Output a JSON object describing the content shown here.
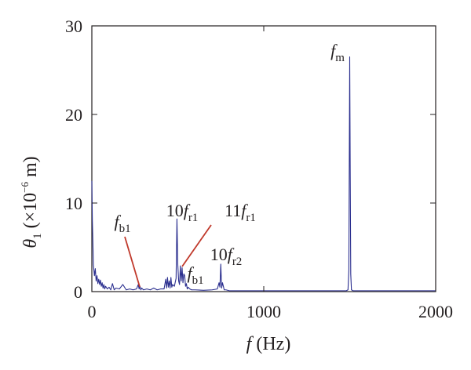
{
  "chart_data": {
    "type": "line",
    "x_unit": "Hz",
    "xlim": [
      0,
      2000
    ],
    "ylim": [
      0,
      30
    ],
    "x_ticks": [
      0,
      1000,
      2000
    ],
    "y_ticks": [
      0,
      10,
      20,
      30
    ],
    "x_tick_labels": [
      "0",
      "1000",
      "2000"
    ],
    "y_tick_labels": [
      "0",
      "10",
      "20",
      "30"
    ],
    "xlabel": {
      "var": "f",
      "rest": " (Hz)"
    },
    "ylabel": {
      "var": "θ",
      "sub": "1",
      "prefix": " (×10",
      "sup": "−6",
      "suffix": " m)"
    },
    "grid": false,
    "series_color": "#2b2f8f",
    "annotation_color": "#c0392b",
    "series": [
      {
        "x": [
          0,
          3,
          6,
          9,
          12,
          15,
          20,
          25,
          30,
          35,
          40,
          45,
          50,
          55,
          60,
          65,
          70,
          75,
          80,
          90,
          100,
          110,
          120,
          130,
          140,
          160,
          180,
          200,
          220,
          240,
          260,
          270,
          275,
          280,
          285,
          290,
          300,
          320,
          340,
          360,
          380,
          400,
          420,
          430,
          435,
          440,
          445,
          450,
          455,
          460,
          465,
          470,
          480,
          490,
          495,
          500,
          505,
          510,
          515,
          520,
          525,
          530,
          535,
          540,
          545,
          550,
          555,
          560,
          570,
          580,
          600,
          650,
          700,
          730,
          740,
          745,
          750,
          755,
          760,
          770,
          780,
          800,
          900,
          1000,
          1100,
          1200,
          1300,
          1400,
          1480,
          1490,
          1495,
          1500,
          1503,
          1506,
          1510,
          1520,
          1600,
          1800,
          2000
        ],
        "y": [
          12.5,
          8.0,
          5.6,
          3.0,
          2.4,
          1.8,
          2.6,
          1.2,
          1.8,
          0.9,
          1.4,
          0.8,
          1.3,
          0.6,
          1.0,
          0.4,
          0.8,
          0.3,
          0.6,
          0.3,
          0.5,
          0.2,
          0.9,
          0.2,
          0.4,
          0.3,
          0.8,
          0.2,
          0.3,
          0.2,
          0.3,
          0.8,
          0.3,
          0.6,
          0.2,
          0.4,
          0.2,
          0.3,
          0.2,
          0.4,
          0.2,
          0.3,
          0.3,
          1.4,
          0.4,
          1.6,
          0.5,
          1.2,
          0.4,
          1.6,
          0.5,
          0.8,
          0.6,
          1.5,
          8.2,
          3.0,
          1.2,
          0.8,
          2.9,
          1.2,
          2.7,
          1.0,
          2.0,
          1.8,
          0.6,
          0.9,
          0.3,
          0.5,
          0.3,
          0.2,
          0.2,
          0.15,
          0.2,
          0.3,
          1.0,
          0.5,
          3.1,
          0.4,
          1.0,
          0.2,
          0.2,
          0.1,
          0.1,
          0.1,
          0.1,
          0.1,
          0.1,
          0.1,
          0.1,
          0.2,
          2.5,
          26.5,
          13.0,
          2.0,
          0.2,
          0.1,
          0.1,
          0.1,
          0.1
        ]
      }
    ],
    "annotations": [
      {
        "id": "fm",
        "main": "f",
        "sub": "m",
        "pre": "",
        "x": 1500,
        "y": 26.5
      },
      {
        "id": "fb1-left",
        "main": "f",
        "sub": "b1",
        "pre": "",
        "x": 280,
        "y": 0.8
      },
      {
        "id": "10fr1",
        "main": "f",
        "sub": "r1",
        "pre": "10",
        "x": 495,
        "y": 8.2
      },
      {
        "id": "11fr1",
        "main": "f",
        "sub": "r1",
        "pre": "11",
        "x": 520,
        "y": 2.9
      },
      {
        "id": "fb1-right",
        "main": "f",
        "sub": "b1",
        "pre": "",
        "x": 545,
        "y": 1.8
      },
      {
        "id": "10fr2",
        "main": "f",
        "sub": "r2",
        "pre": "10",
        "x": 750,
        "y": 3.1
      }
    ]
  }
}
